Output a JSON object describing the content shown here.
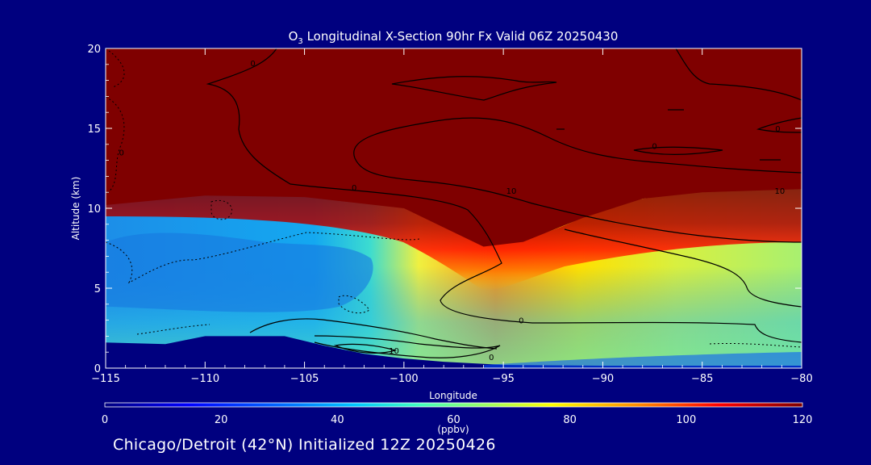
{
  "chart_data": {
    "type": "heatmap",
    "title_prefix": "O",
    "title_subscript": "3",
    "title_rest": " Longitudinal X-Section 90hr  Fx Valid 06Z 20250430",
    "xlabel": "Longitude",
    "ylabel": "Altitude (km)",
    "xlim": [
      -115,
      -80
    ],
    "ylim": [
      0,
      20
    ],
    "x_ticks": [
      -115,
      -110,
      -105,
      -100,
      -95,
      -90,
      -85,
      -80
    ],
    "x_tick_labels": [
      "−115",
      "−110",
      "−105",
      "−100",
      "−95",
      "−90",
      "−85",
      "−80"
    ],
    "y_ticks": [
      0,
      5,
      10,
      15,
      20
    ],
    "y_tick_labels": [
      "0",
      "5",
      "10",
      "15",
      "20"
    ],
    "colorbar": {
      "label": "(ppbv)",
      "range": [
        0,
        120
      ],
      "ticks": [
        0,
        20,
        40,
        60,
        80,
        100,
        120
      ],
      "tick_labels": [
        "0",
        "20",
        "40",
        "60",
        "80",
        "100",
        "120"
      ]
    },
    "ozone_layer_base_km": [
      {
        "lon": -115,
        "alt": 10.2
      },
      {
        "lon": -110,
        "alt": 10.8
      },
      {
        "lon": -105,
        "alt": 10.7
      },
      {
        "lon": -100,
        "alt": 10.0
      },
      {
        "lon": -98,
        "alt": 8.8
      },
      {
        "lon": -96,
        "alt": 7.6
      },
      {
        "lon": -94,
        "alt": 7.9
      },
      {
        "lon": -91,
        "alt": 9.4
      },
      {
        "lon": -88,
        "alt": 10.6
      },
      {
        "lon": -85,
        "alt": 11.0
      },
      {
        "lon": -80,
        "alt": 11.2
      }
    ],
    "terrain_km": [
      {
        "lon": -115,
        "alt": 1.6
      },
      {
        "lon": -112,
        "alt": 1.5
      },
      {
        "lon": -110,
        "alt": 2.0
      },
      {
        "lon": -106,
        "alt": 2.0
      },
      {
        "lon": -104,
        "alt": 1.4
      },
      {
        "lon": -102,
        "alt": 0.9
      },
      {
        "lon": -100,
        "alt": 0.6
      },
      {
        "lon": -98,
        "alt": 0.4
      },
      {
        "lon": -95,
        "alt": 0.2
      },
      {
        "lon": -90,
        "alt": 0.15
      },
      {
        "lon": -80,
        "alt": 0.15
      }
    ],
    "contour_labels": [
      {
        "text": "0",
        "lon": -107.6,
        "alt": 18.9
      },
      {
        "text": "0",
        "lon": -102.5,
        "alt": 11.1
      },
      {
        "text": "10",
        "lon": -94.6,
        "alt": 10.9
      },
      {
        "text": "0",
        "lon": -87.4,
        "alt": 13.7
      },
      {
        "text": "0",
        "lon": -81.2,
        "alt": 14.8
      },
      {
        "text": "10",
        "lon": -81.1,
        "alt": 10.9
      },
      {
        "text": "0",
        "lon": -114.2,
        "alt": 13.3
      },
      {
        "text": "0",
        "lon": -94.1,
        "alt": 2.8
      },
      {
        "text": "10",
        "lon": -100.5,
        "alt": 0.9
      },
      {
        "text": "0",
        "lon": -95.6,
        "alt": 0.5
      }
    ]
  },
  "footer": {
    "text": "Chicago/Detroit (42°N) Initialized 12Z 20250426"
  }
}
